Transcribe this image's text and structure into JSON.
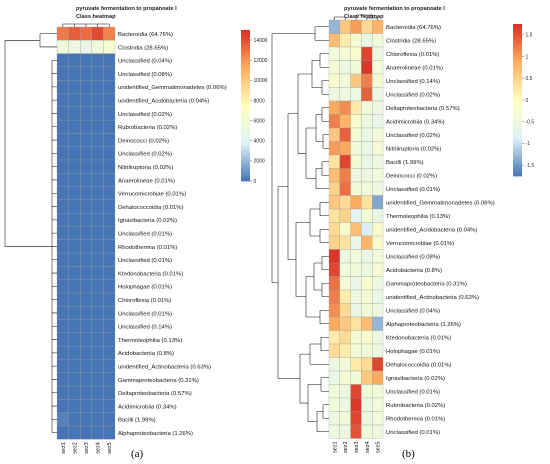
{
  "chart_data": [
    {
      "type": "heatmap",
      "title": "pyruvate fermentation to propanoate I",
      "subtitle": "Class heatmap",
      "panel_label": "(a)",
      "columns": [
        "sez1",
        "sez2",
        "sez3",
        "sez4",
        "sez5"
      ],
      "rows": [
        "Bacteroidia (64.76%)",
        "Clostridia (28.65%)",
        "Unclassified (0.04%)",
        "Unclassified (0.08%)",
        "unidentified_Gemmatimonadetes (0.06%)",
        "unidentified_Acidobacteria (0.04%)",
        "Unclassified (0.02%)",
        "Rubrobacteria (0.02%)",
        "Deinococci (0.02%)",
        "Unclassified (0.02%)",
        "Nitriliruptoria (0.02%)",
        "Anaerolineae (0.01%)",
        "Verrucomicrobiae (0.01%)",
        "Dehalococcoidia (0.01%)",
        "Ignavibacteria (0.02%)",
        "Unclassified (0.01%)",
        "Rhodothermia (0.01%)",
        "Unclassified (0.01%)",
        "Ktedonobacteria (0.01%)",
        "Holophagae (0.01%)",
        "Chloroflexia (0.01%)",
        "Unclassified (0.01%)",
        "Unclassified (0.14%)",
        "Thermoleophilia (0.13%)",
        "Acidobacteriia (0.8%)",
        "unidentified_Actinobacteria (0.63%)",
        "Gammaproteobacteria (0.31%)",
        "Deltaproteobacteria (0.57%)",
        "Acidimicrobiia (0.34%)",
        "Bacilli (1.99%)",
        "Alphaproteobacteria (1.26%)"
      ],
      "values": [
        [
          12800,
          13600,
          13200,
          14200,
          12500
        ],
        [
          5600,
          5200,
          4800,
          5800,
          6400
        ],
        [
          0,
          0,
          0,
          0,
          0
        ],
        [
          0,
          0,
          0,
          0,
          0
        ],
        [
          0,
          0,
          0,
          0,
          0
        ],
        [
          0,
          0,
          0,
          0,
          0
        ],
        [
          0,
          0,
          0,
          0,
          0
        ],
        [
          0,
          0,
          0,
          0,
          0
        ],
        [
          0,
          0,
          0,
          0,
          0
        ],
        [
          0,
          0,
          0,
          0,
          0
        ],
        [
          0,
          0,
          0,
          0,
          0
        ],
        [
          0,
          0,
          0,
          0,
          0
        ],
        [
          0,
          0,
          0,
          0,
          0
        ],
        [
          0,
          0,
          0,
          0,
          0
        ],
        [
          0,
          0,
          0,
          0,
          0
        ],
        [
          0,
          0,
          0,
          0,
          0
        ],
        [
          0,
          0,
          0,
          0,
          0
        ],
        [
          0,
          0,
          0,
          0,
          0
        ],
        [
          0,
          0,
          0,
          0,
          0
        ],
        [
          0,
          0,
          0,
          0,
          0
        ],
        [
          0,
          0,
          0,
          0,
          0
        ],
        [
          0,
          0,
          0,
          0,
          0
        ],
        [
          0,
          0,
          0,
          0,
          0
        ],
        [
          0,
          0,
          0,
          0,
          0
        ],
        [
          0,
          0,
          0,
          0,
          0
        ],
        [
          0,
          0,
          0,
          0,
          0
        ],
        [
          0,
          0,
          0,
          0,
          0
        ],
        [
          0,
          0,
          0,
          0,
          0
        ],
        [
          0,
          0,
          0,
          0,
          0
        ],
        [
          400,
          0,
          0,
          0,
          0
        ],
        [
          0,
          0,
          0,
          0,
          0
        ]
      ],
      "scale_ticks": [
        0,
        2000,
        4000,
        6000,
        8000,
        10000,
        12000,
        14000
      ],
      "scale_range": [
        0,
        15000
      ],
      "colors": [
        "#4575b4",
        "#e0f3f8",
        "#ffffbf",
        "#fdae61",
        "#d73027"
      ]
    },
    {
      "type": "heatmap",
      "title": "pyruvate fermentation to propanoate I",
      "subtitle": "Class heatmap",
      "panel_label": "(b)",
      "columns": [
        "sez1",
        "sez2",
        "sez3",
        "sez4",
        "sez5"
      ],
      "rows": [
        "Bacteroidia (64.76%)",
        "Clostridia (28.65%)",
        "Chloroflexia (0.01%)",
        "Anaerolineae (0.01%)",
        "Unclassified (0.14%)",
        "Unclassified (0.02%)",
        "Deltaproteobacteria (0.57%)",
        "Acidimicrobiia (0.34%)",
        "Unclassified (0.02%)",
        "Nitriliruptoria (0.02%)",
        "Bacilli (1.99%)",
        "Deinococci (0.02%)",
        "Unclassified (0.01%)",
        "unidentified_Gemmatimonadetes (0.06%)",
        "Thermoleophilia (0.13%)",
        "unidentified_Acidobacteria (0.04%)",
        "Verrucomicrobiae (0.01%)",
        "Unclassified (0.08%)",
        "Acidobacteriia (0.8%)",
        "Gammaproteobacteria (0.31%)",
        "unidentified_Actinobacteria (0.63%)",
        "Unclassified (0.04%)",
        "Alphaproteobacteria (1.26%)",
        "Ktedonobacteria (0.01%)",
        "Holophagae (0.01%)",
        "Dehalococcoidia (0.01%)",
        "Ignavibacteria (0.02%)",
        "Unclassified (0.01%)",
        "Rubrobacteria (0.02%)",
        "Rhodothermia (0.01%)",
        "Unclassified (0.01%)"
      ],
      "values": [
        [
          -1.3,
          0.6,
          1.0,
          0.4,
          0.8
        ],
        [
          0.7,
          0.2,
          -0.3,
          -0.6,
          -0.4
        ],
        [
          -0.4,
          -0.3,
          -0.2,
          1.6,
          -0.5
        ],
        [
          -0.3,
          -0.5,
          -0.4,
          1.7,
          -0.4
        ],
        [
          -0.2,
          -0.4,
          0.6,
          1.2,
          -0.3
        ],
        [
          -0.5,
          -0.5,
          -0.5,
          1.4,
          -0.5
        ],
        [
          0.9,
          1.1,
          0.2,
          -0.4,
          -0.5
        ],
        [
          1.2,
          0.8,
          -0.2,
          -0.5,
          -0.6
        ],
        [
          0.6,
          1.4,
          -0.3,
          -0.6,
          -0.4
        ],
        [
          1.0,
          0.9,
          -0.4,
          -0.6,
          -0.3
        ],
        [
          0.3,
          1.6,
          -0.3,
          -0.6,
          -0.5
        ],
        [
          0.7,
          1.2,
          -0.5,
          -0.5,
          -0.4
        ],
        [
          0.5,
          1.3,
          -0.4,
          -0.4,
          -0.5
        ],
        [
          0.6,
          0.4,
          0.9,
          0.3,
          -1.4
        ],
        [
          0.3,
          0.5,
          -0.8,
          -0.3,
          -0.6
        ],
        [
          0.4,
          -0.2,
          0.7,
          -0.9,
          -0.2
        ],
        [
          0.5,
          0.3,
          -0.6,
          0.8,
          -0.2
        ],
        [
          1.7,
          -0.5,
          -0.4,
          -0.6,
          -0.4
        ],
        [
          1.6,
          -0.4,
          -0.4,
          -0.5,
          -0.3
        ],
        [
          1.3,
          -0.3,
          -0.6,
          -0.2,
          -0.5
        ],
        [
          1.2,
          0.2,
          -0.5,
          -0.3,
          -0.6
        ],
        [
          1.1,
          0.4,
          -0.6,
          -0.4,
          -0.5
        ],
        [
          0.9,
          0.6,
          0.3,
          0.7,
          -1.3
        ],
        [
          0.2,
          0.4,
          -0.3,
          -0.2,
          -0.5
        ],
        [
          0.4,
          0.2,
          -0.4,
          -0.4,
          -0.5
        ],
        [
          -0.5,
          -0.4,
          0.2,
          0.4,
          1.6
        ],
        [
          -0.6,
          -0.3,
          -0.4,
          0.6,
          0.9
        ],
        [
          -0.4,
          -0.5,
          1.6,
          -0.4,
          -0.4
        ],
        [
          -0.4,
          -0.5,
          1.7,
          -0.5,
          -0.4
        ],
        [
          -0.5,
          -0.4,
          1.6,
          -0.5,
          -0.4
        ],
        [
          -0.5,
          -0.5,
          1.5,
          -0.4,
          -0.5
        ]
      ],
      "scale_ticks": [
        -1.5,
        -1,
        -0.5,
        0,
        0.5,
        1,
        1.5
      ],
      "scale_range": [
        -1.75,
        1.75
      ],
      "colors": [
        "#4575b4",
        "#e0f3f8",
        "#ffffbf",
        "#fdae61",
        "#d73027"
      ]
    }
  ]
}
